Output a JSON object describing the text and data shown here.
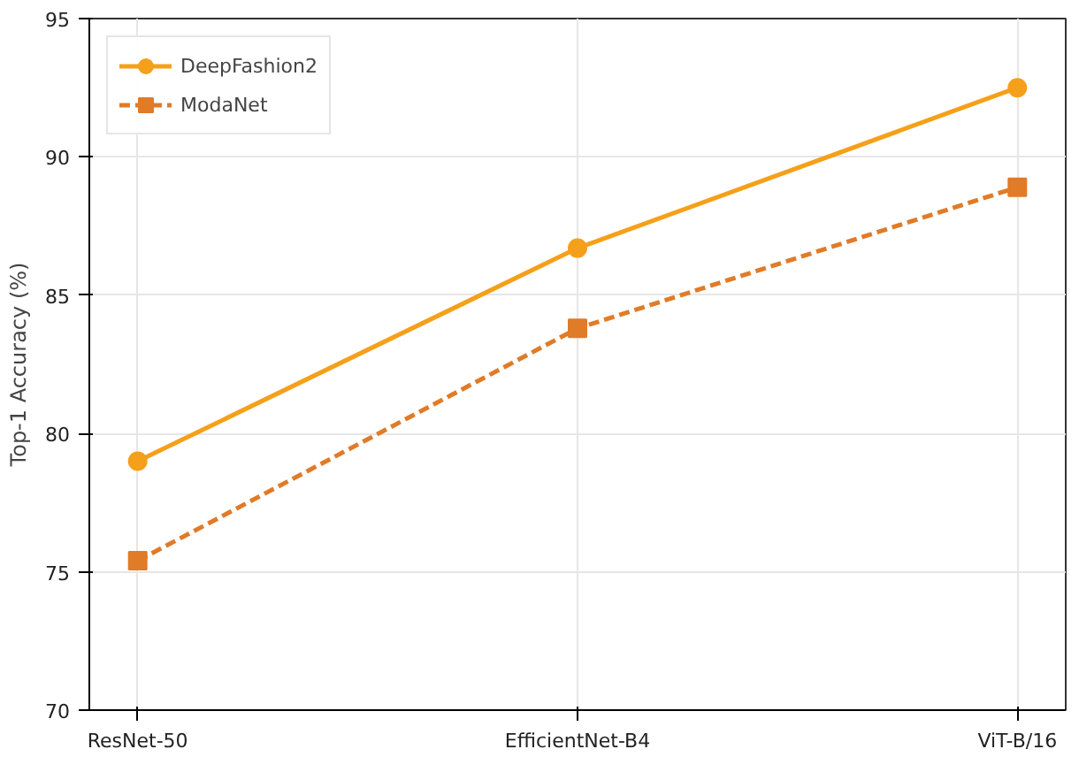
{
  "chart_data": {
    "type": "line",
    "ylabel": "Top-1 Accuracy (%)",
    "categories": [
      "ResNet-50",
      "EfficientNet-B4",
      "ViT-B/16"
    ],
    "series": [
      {
        "name": "DeepFashion2",
        "color": "#f5a01a",
        "values": [
          79.0,
          86.7,
          92.5
        ],
        "marker": "circle",
        "line_style": "solid"
      },
      {
        "name": "ModaNet",
        "color": "#e07b28",
        "values": [
          75.4,
          83.8,
          88.9
        ],
        "marker": "square",
        "line_style": "dashed"
      }
    ],
    "ylim": [
      70,
      95
    ],
    "yticks": [
      70,
      75,
      80,
      85,
      90,
      95
    ],
    "grid": true,
    "legend": "top left"
  }
}
